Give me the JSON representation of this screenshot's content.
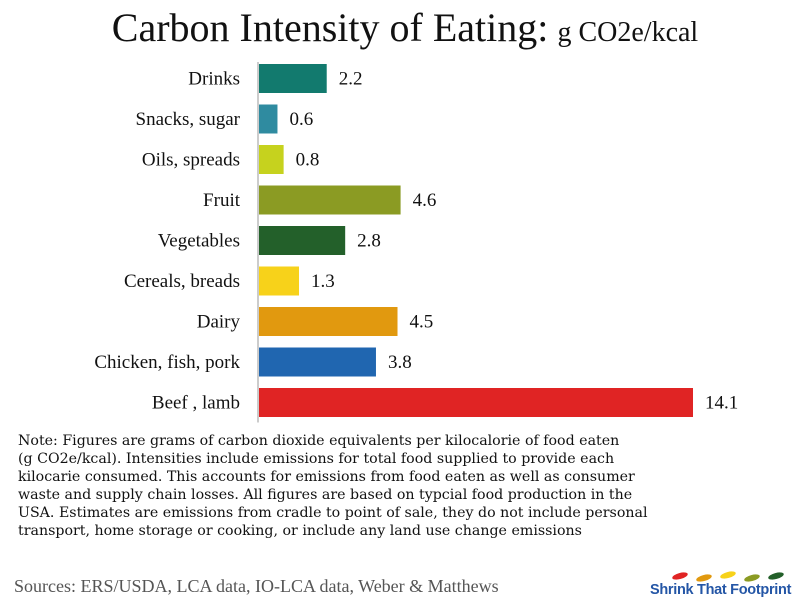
{
  "title": {
    "main": "Carbon Intensity of Eating:",
    "unit": "g CO2e/kcal"
  },
  "chart_data": {
    "type": "bar",
    "orientation": "horizontal",
    "categories": [
      "Drinks",
      "Snacks, sugar",
      "Oils, spreads",
      "Fruit",
      "Vegetables",
      "Cereals, breads",
      "Dairy",
      "Chicken, fish, pork",
      "Beef , lamb"
    ],
    "values": [
      2.2,
      0.6,
      0.8,
      4.6,
      2.8,
      1.3,
      4.5,
      3.8,
      14.1
    ],
    "value_labels": [
      "2.2",
      "0.6",
      "0.8",
      "4.6",
      "2.8",
      "1.3",
      "4.5",
      "3.8",
      "14.1"
    ],
    "colors": [
      "#127a6e",
      "#2f8ba0",
      "#c6d21e",
      "#8b9b23",
      "#23602a",
      "#f7d21a",
      "#e1990f",
      "#2066b0",
      "#e02424"
    ],
    "title": "Carbon Intensity of Eating: g CO2e/kcal",
    "xlabel": "",
    "ylabel": "",
    "xlim": [
      0,
      14.5
    ],
    "grid": false,
    "legend": "none"
  },
  "note": "Note: Figures are grams of carbon dioxide equivalents per kilocalorie of food eaten\n (g CO2e/kcal).  Intensities include emissions for total food supplied to provide each\nkilocarie consumed.  This accounts for emissions from food eaten as well as consumer\nwaste and supply chain losses.  All figures are based on typcial food production in the\nUSA.  Estimates are emissions from cradle to point of sale, they do not include personal\ntransport, home storage or cooking, or include any land use change emissions",
  "sources": "Sources:  ERS/USDA, LCA data, IO-LCA data, Weber & Matthews",
  "logo": {
    "text": "Shrink That Footprint",
    "mark_colors": [
      "#e02424",
      "#e1990f",
      "#f7d21a",
      "#8b9b23",
      "#23602a"
    ]
  }
}
